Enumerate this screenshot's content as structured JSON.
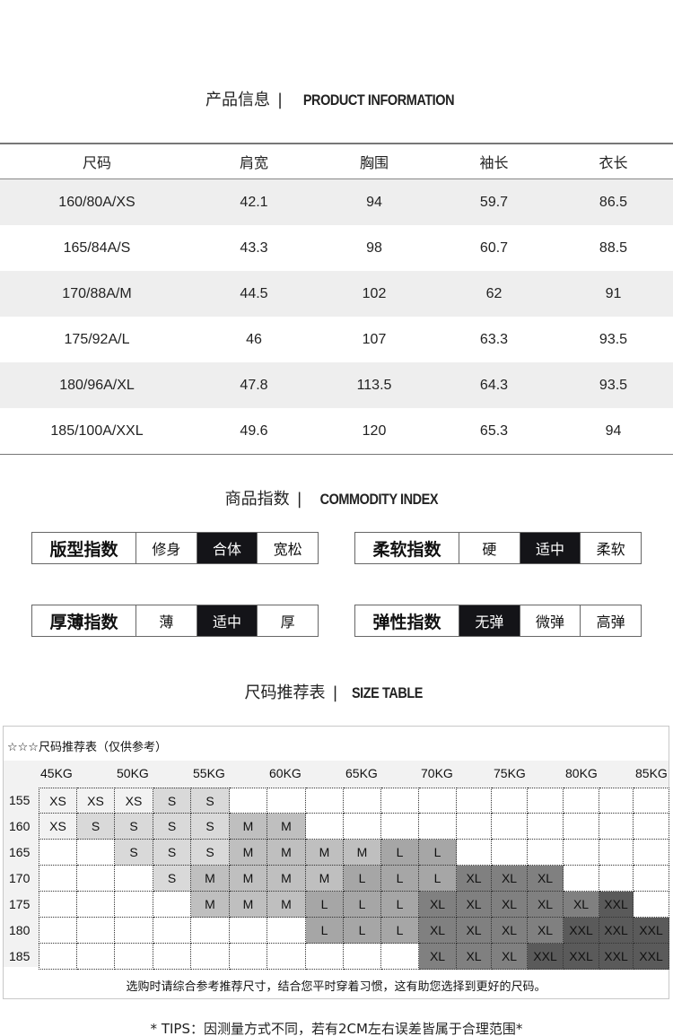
{
  "product_info": {
    "title_cn": "产品信息",
    "title_en": "PRODUCT INFORMATION",
    "headers": [
      "尺码",
      "肩宽",
      "胸围",
      "袖长",
      "衣长"
    ],
    "rows": [
      [
        "160/80A/XS",
        "42.1",
        "94",
        "59.7",
        "86.5"
      ],
      [
        "165/84A/S",
        "43.3",
        "98",
        "60.7",
        "88.5"
      ],
      [
        "170/88A/M",
        "44.5",
        "102",
        "62",
        "91"
      ],
      [
        "175/92A/L",
        "46",
        "107",
        "63.3",
        "93.5"
      ],
      [
        "180/96A/XL",
        "47.8",
        "113.5",
        "64.3",
        "93.5"
      ],
      [
        "185/100A/XXL",
        "49.6",
        "120",
        "65.3",
        "94"
      ]
    ]
  },
  "commodity_index": {
    "title_cn": "商品指数",
    "title_en": "COMMODITY INDEX",
    "groups": [
      {
        "label": "版型指数",
        "options": [
          "修身",
          "合体",
          "宽松"
        ],
        "selected": 1
      },
      {
        "label": "柔软指数",
        "options": [
          "硬",
          "适中",
          "柔软"
        ],
        "selected": 1
      },
      {
        "label": "厚薄指数",
        "options": [
          "薄",
          "适中",
          "厚"
        ],
        "selected": 1
      },
      {
        "label": "弹性指数",
        "options": [
          "无弹",
          "微弹",
          "高弹"
        ],
        "selected": 0
      }
    ]
  },
  "size_table": {
    "title_cn": "尺码推荐表",
    "title_en": "SIZE TABLE",
    "heading": "☆☆☆尺码推荐表（仅供参考）",
    "weights": [
      "45KG",
      "50KG",
      "55KG",
      "60KG",
      "65KG",
      "70KG",
      "75KG",
      "80KG",
      "85KG"
    ],
    "heights": [
      "155",
      "160",
      "165",
      "170",
      "175",
      "180",
      "185"
    ],
    "grid": [
      [
        "XS",
        "XS",
        "XS",
        "S",
        "S",
        "",
        "",
        "",
        "",
        "",
        "",
        "",
        "",
        "",
        "",
        "",
        ""
      ],
      [
        "XS",
        "S",
        "S",
        "S",
        "S",
        "M",
        "M",
        "",
        "",
        "",
        "",
        "",
        "",
        "",
        "",
        "",
        ""
      ],
      [
        "",
        "",
        "S",
        "S",
        "S",
        "M",
        "M",
        "M",
        "M",
        "L",
        "L",
        "",
        "",
        "",
        "",
        "",
        ""
      ],
      [
        "",
        "",
        "",
        "S",
        "M",
        "M",
        "M",
        "M",
        "L",
        "L",
        "L",
        "XL",
        "XL",
        "XL",
        "",
        "",
        ""
      ],
      [
        "",
        "",
        "",
        "",
        "M",
        "M",
        "M",
        "L",
        "L",
        "L",
        "XL",
        "XL",
        "XL",
        "XL",
        "XL",
        "XXL",
        ""
      ],
      [
        "",
        "",
        "",
        "",
        "",
        "",
        "",
        "L",
        "L",
        "L",
        "XL",
        "XL",
        "XL",
        "XL",
        "XXL",
        "XXL",
        "XXL"
      ],
      [
        "",
        "",
        "",
        "",
        "",
        "",
        "",
        "",
        "",
        "",
        "XL",
        "XL",
        "XL",
        "XXL",
        "XXL",
        "XXL",
        "XXL"
      ]
    ],
    "size_colors": {
      "XS": "#f2f2f2",
      "S": "#d9d9d9",
      "M": "#bfbfbf",
      "L": "#a6a6a6",
      "XL": "#808080",
      "XXL": "#5a5a5a"
    },
    "note": "选购时请综合参考推荐尺寸，结合您平时穿着习惯，这有助您选择到更好的尺码。"
  },
  "tips": "* TIPS：因测量方式不同，若有2CM左右误差皆属于合理范围*"
}
